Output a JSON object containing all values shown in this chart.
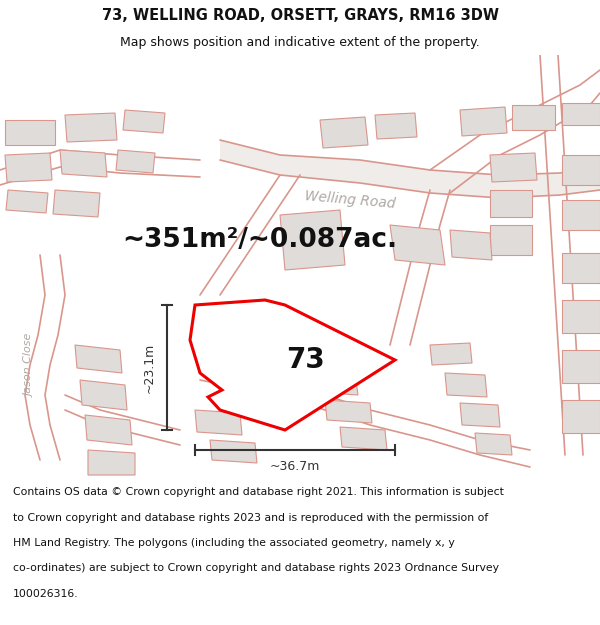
{
  "title": "73, WELLING ROAD, ORSETT, GRAYS, RM16 3DW",
  "subtitle": "Map shows position and indicative extent of the property.",
  "area_text": "~351m²/~0.087ac.",
  "label_73": "73",
  "dim_width": "~36.7m",
  "dim_height": "~23.1m",
  "road_label": "Welling Road",
  "street_label": "Jason Close",
  "copyright_lines": [
    "Contains OS data © Crown copyright and database right 2021. This information is subject",
    "to Crown copyright and database rights 2023 and is reproduced with the permission of",
    "HM Land Registry. The polygons (including the associated geometry, namely x, y",
    "co-ordinates) are subject to Crown copyright and database rights 2023 Ordnance Survey",
    "100026316."
  ],
  "fig_bg": "#ffffff",
  "map_bg": "#ffffff",
  "building_fill": "#e0dcda",
  "building_stroke": "#d9968c",
  "road_stroke": "#d9968c",
  "plot_fill": "#ffffff",
  "plot_stroke": "#ee0000",
  "plot_stroke_lw": 2.2,
  "dim_color": "#333333",
  "text_color": "#111111",
  "road_label_color": "#b0a8a4",
  "title_fontsize": 10.5,
  "subtitle_fontsize": 9,
  "area_fontsize": 19,
  "label_fontsize": 20,
  "dim_fontsize": 9,
  "copyright_fontsize": 7.8,
  "road_label_fontsize": 10
}
